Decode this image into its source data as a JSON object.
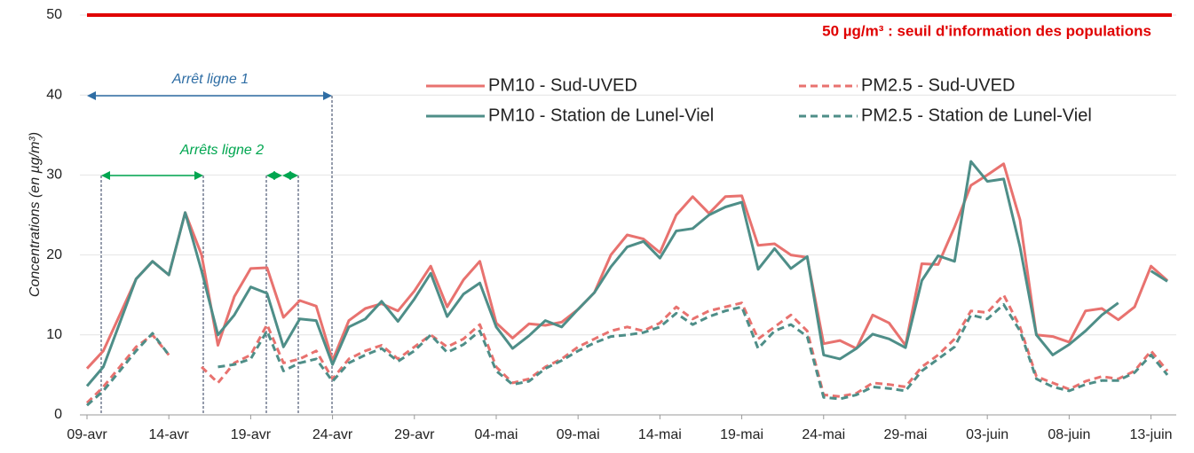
{
  "chart_data": {
    "type": "line",
    "y_label": "Concentrations (en µg/m³)",
    "categories": [
      "09-avr",
      null,
      null,
      null,
      null,
      "14-avr",
      null,
      null,
      null,
      null,
      "19-avr",
      null,
      null,
      null,
      null,
      "24-avr",
      null,
      null,
      null,
      null,
      "29-avr",
      null,
      null,
      null,
      null,
      "04-mai",
      null,
      null,
      null,
      null,
      "09-mai",
      null,
      null,
      null,
      null,
      "14-mai",
      null,
      null,
      null,
      null,
      "19-mai",
      null,
      null,
      null,
      null,
      "24-mai",
      null,
      null,
      null,
      null,
      "29-mai",
      null,
      null,
      null,
      null,
      "03-juin",
      null,
      null,
      null,
      null,
      "08-juin",
      null,
      null,
      null,
      null,
      "13-juin",
      null
    ],
    "series": [
      {
        "name": "PM10 - Sud-UVED",
        "color": "#e8726f",
        "dash": false,
        "values": [
          5.8,
          8,
          12.5,
          17,
          19.2,
          17.5,
          25.3,
          20,
          8.7,
          14.8,
          18.3,
          18.4,
          12.2,
          14.3,
          13.6,
          6.8,
          11.8,
          13.3,
          13.9,
          13,
          15.5,
          18.6,
          13.5,
          16.9,
          19.2,
          11.5,
          9.6,
          11.4,
          11.2,
          11.6,
          13.2,
          15.3,
          20,
          22.5,
          22,
          20.3,
          25,
          27.3,
          25.2,
          27.3,
          27.4,
          21.2,
          21.4,
          20,
          19.7,
          8.9,
          9.3,
          8.3,
          12.5,
          11.5,
          8.7,
          18.9,
          18.8,
          23.5,
          28.7,
          30,
          31.4,
          24.4,
          10,
          9.8,
          9.1,
          13,
          13.3,
          11.9,
          13.5,
          18.6,
          16.8
        ]
      },
      {
        "name": "PM2.5 - Sud-UVED",
        "color": "#e8726f",
        "dash": true,
        "values": [
          1.5,
          3.5,
          6,
          8.5,
          10,
          7.5,
          null,
          6,
          4,
          6.5,
          7.5,
          11.3,
          6.5,
          7,
          8,
          4.5,
          7,
          8,
          8.7,
          7,
          8.5,
          10,
          8.5,
          9.5,
          11.3,
          6,
          4,
          4.5,
          6,
          7,
          8.5,
          9.5,
          10.5,
          11,
          10.5,
          11.5,
          13.5,
          12,
          13,
          13.5,
          14,
          9.5,
          11,
          12.5,
          10.5,
          2.5,
          2.3,
          2.7,
          4,
          3.8,
          3.5,
          6,
          7.5,
          9.5,
          13,
          12.8,
          15,
          11,
          4.8,
          4,
          3.2,
          4.2,
          4.8,
          4.5,
          5.5,
          8,
          5.5
        ]
      },
      {
        "name": "PM10 - Station de Lunel-Viel",
        "color": "#4e8e88",
        "dash": false,
        "values": [
          3.6,
          6,
          11.5,
          17,
          19.2,
          17.5,
          25.3,
          18,
          10,
          12.5,
          16,
          15.2,
          8.5,
          12,
          11.8,
          6.3,
          11,
          12,
          14.2,
          11.7,
          14.5,
          17.7,
          12.3,
          15.1,
          16.5,
          11,
          8.3,
          9.9,
          11.8,
          11,
          13.2,
          15.3,
          18.5,
          21,
          21.7,
          19.6,
          23,
          23.3,
          25,
          26,
          26.6,
          18.2,
          20.8,
          18.3,
          19.8,
          7.5,
          7,
          8.3,
          10.1,
          9.5,
          8.4,
          16.8,
          19.9,
          19.2,
          31.7,
          29.2,
          29.5,
          21,
          10,
          7.5,
          8.8,
          10.5,
          12.5,
          14,
          null,
          18,
          16.7
        ]
      },
      {
        "name": "PM2.5 - Station de Lunel-Viel",
        "color": "#4e8e88",
        "dash": true,
        "values": [
          1.2,
          3,
          5.5,
          8,
          10.2,
          7.5,
          null,
          null,
          6,
          6.3,
          7,
          10.5,
          5.5,
          6.5,
          7,
          4.2,
          6.5,
          7.5,
          8.3,
          6.7,
          8,
          10,
          7.8,
          8.8,
          10.5,
          5.5,
          3.8,
          4.2,
          5.8,
          6.8,
          8,
          9,
          9.8,
          10,
          10.3,
          11,
          12.7,
          11.3,
          12.3,
          13,
          13.5,
          8.3,
          10.5,
          11.3,
          9.8,
          2.2,
          2,
          2.5,
          3.5,
          3.3,
          3,
          5.5,
          7,
          8.5,
          12.5,
          12,
          13.8,
          10.5,
          4.5,
          3.5,
          3,
          3.8,
          4.3,
          4.3,
          5.3,
          7.5,
          5
        ]
      }
    ],
    "ylim": [
      0,
      50
    ],
    "yticks": [
      0,
      10,
      20,
      30,
      40,
      50
    ],
    "grid": true,
    "threshold": {
      "value": 50,
      "label": "50 µg/m³ : seuil d'information des populations",
      "color": "#e00000"
    },
    "annotations": [
      {
        "text": "Arrêt ligne 1",
        "color": "#2e6da4"
      },
      {
        "text": "Arrêts ligne 2",
        "color": "#00a650"
      }
    ]
  }
}
